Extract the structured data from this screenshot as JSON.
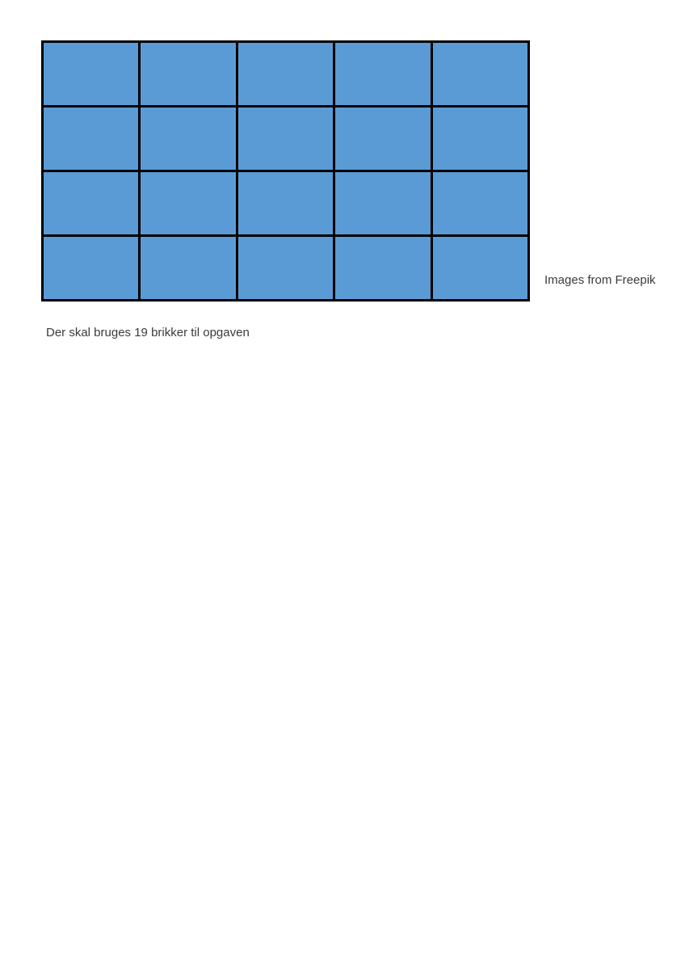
{
  "page": {
    "background_color": "#ffffff"
  },
  "grid": {
    "rows": 4,
    "columns": 5,
    "cell_color": "#5b9bd5",
    "line_color": "#000000"
  },
  "texts": {
    "credit": "Images from Freepik",
    "instruction": "Der skal bruges 19 brikker til opgaven"
  }
}
